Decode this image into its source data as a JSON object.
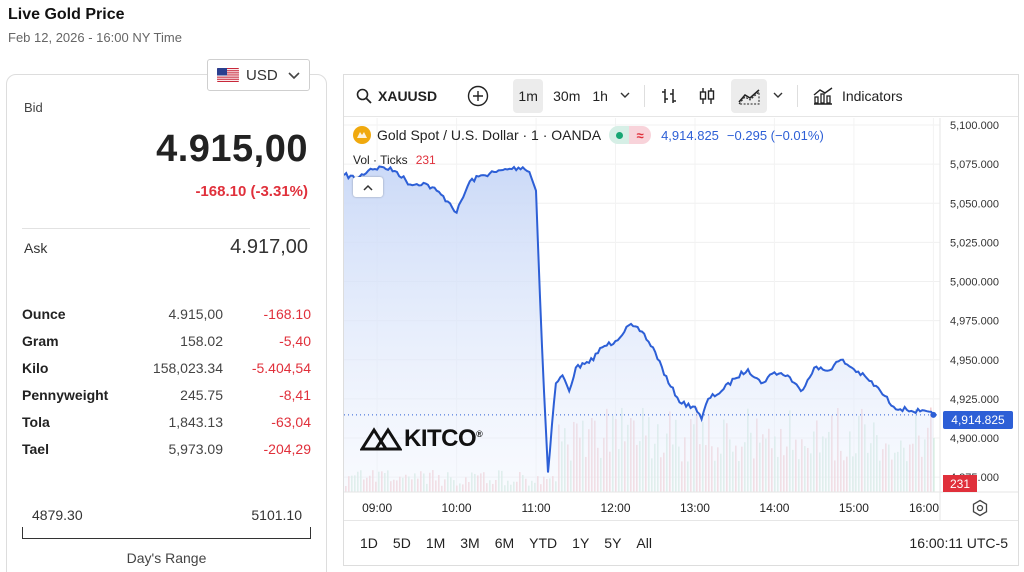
{
  "header": {
    "title": "Live Gold Price",
    "subtitle": "Feb 12, 2026 - 16:00 NY Time"
  },
  "currency": {
    "selected": "USD"
  },
  "quote": {
    "bid_label": "Bid",
    "bid_value": "4.915,00",
    "bid_change": "-168.10 (-3.31%)",
    "ask_label": "Ask",
    "ask_value": "4.917,00"
  },
  "units": [
    {
      "name": "Ounce",
      "value": "4.915,00",
      "change": "-168.10"
    },
    {
      "name": "Gram",
      "value": "158.02",
      "change": "-5,40"
    },
    {
      "name": "Kilo",
      "value": "158,023.34",
      "change": "-5.404,54"
    },
    {
      "name": "Pennyweight",
      "value": "245.75",
      "change": "-8,41"
    },
    {
      "name": "Tola",
      "value": "1,843.13",
      "change": "-63,04"
    },
    {
      "name": "Tael",
      "value": "5,973.09",
      "change": "-204,29"
    }
  ],
  "days_range": {
    "low": "4879.30",
    "high": "5101.10",
    "label": "Day's Range"
  },
  "toolbar": {
    "symbol": "XAUUSD",
    "intervals": [
      "1m",
      "30m",
      "1h"
    ],
    "active_interval": "1m",
    "indicators_label": "Indicators"
  },
  "legend": {
    "title": "Gold Spot / U.S. Dollar · 1 · OANDA",
    "approx_symbol": "≈",
    "price": "4,914.825",
    "change": "−0.295 (−0.01%)",
    "vol_label": "Vol · Ticks",
    "vol_value": "231"
  },
  "brand": {
    "name": "KITCO",
    "reg": "®"
  },
  "price_tag": "4,914.825",
  "vol_tag": "231",
  "range_buttons": [
    "1D",
    "5D",
    "1M",
    "3M",
    "6M",
    "YTD",
    "1Y",
    "5Y",
    "All"
  ],
  "clock": "16:00:11 UTC-5",
  "colors": {
    "line": "#2d5fd6",
    "area_top": "#c9d8f7",
    "down": "#e0303b",
    "up": "#17a673",
    "gold": "#f0a90e"
  },
  "chart_data": {
    "type": "area",
    "symbol": "XAUUSD",
    "interval": "1m",
    "x_ticks": [
      "09:00",
      "10:00",
      "11:00",
      "12:00",
      "13:00",
      "14:00",
      "15:00",
      "16:00"
    ],
    "y_ticks": [
      "5,100.000",
      "5,075.000",
      "5,050.000",
      "5,025.000",
      "5,000.000",
      "4,975.000",
      "4,950.000",
      "4,925.000",
      "4,900.000",
      "4,875.000"
    ],
    "ylim": [
      4870,
      5100
    ],
    "x_range": [
      "08:35",
      "16:05"
    ],
    "series": [
      {
        "name": "Gold Spot / U.S. Dollar",
        "x": [
          "08:35",
          "08:45",
          "08:55",
          "09:05",
          "09:15",
          "09:25",
          "09:35",
          "09:45",
          "09:55",
          "10:00",
          "10:10",
          "10:20",
          "10:30",
          "10:40",
          "10:50",
          "10:55",
          "11:00",
          "11:03",
          "11:06",
          "11:09",
          "11:12",
          "11:15",
          "11:20",
          "11:25",
          "11:30",
          "11:40",
          "11:50",
          "12:00",
          "12:10",
          "12:20",
          "12:30",
          "12:40",
          "12:50",
          "13:00",
          "13:05",
          "13:10",
          "13:20",
          "13:30",
          "13:40",
          "13:50",
          "14:00",
          "14:10",
          "14:20",
          "14:30",
          "14:40",
          "14:50",
          "15:00",
          "15:10",
          "15:20",
          "15:30",
          "15:40",
          "15:50",
          "16:00"
        ],
        "y": [
          5068,
          5066,
          5072,
          5073,
          5070,
          5062,
          5063,
          5058,
          5050,
          5044,
          5064,
          5068,
          5070,
          5072,
          5073,
          5070,
          5058,
          4990,
          4930,
          4878,
          4908,
          4935,
          4940,
          4930,
          4945,
          4948,
          4958,
          4962,
          4972,
          4968,
          4955,
          4935,
          4922,
          4920,
          4912,
          4925,
          4930,
          4938,
          4944,
          4935,
          4942,
          4940,
          4930,
          4945,
          4943,
          4950,
          4944,
          4938,
          4930,
          4920,
          4918,
          4917,
          4914.825
        ]
      }
    ],
    "volume": {
      "name": "Vol · Ticks",
      "last": 231
    },
    "last_price": 4914.825,
    "change": -0.295,
    "change_pct": -0.01,
    "grid": true
  }
}
